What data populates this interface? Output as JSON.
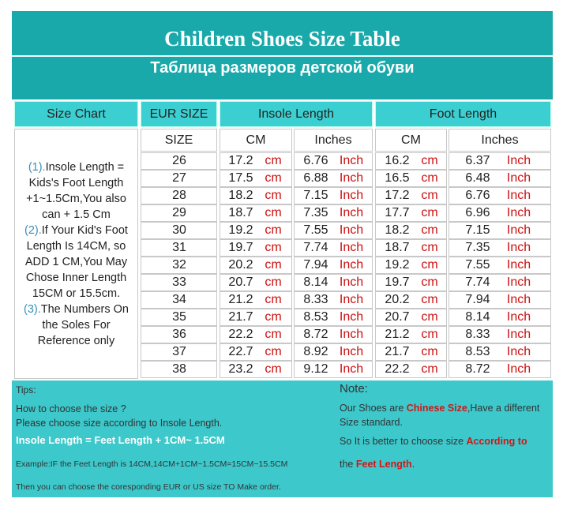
{
  "header": {
    "title": "Children Shoes Size Table",
    "subtitle": "Таблица размеров детской обуви"
  },
  "table": {
    "headers": [
      "Size Chart",
      "EUR SIZE",
      "Insole Length",
      "Foot Length"
    ],
    "subheaders": [
      "SIZE",
      "CM",
      "Inches",
      "CM",
      "Inches"
    ],
    "rows": [
      [
        "26",
        "17.2",
        "cm",
        "6.76",
        "Inch",
        "16.2",
        "cm",
        "6.37",
        "Inch"
      ],
      [
        "27",
        "17.5",
        "cm",
        "6.88",
        "Inch",
        "16.5",
        "cm",
        "6.48",
        "Inch"
      ],
      [
        "28",
        "18.2",
        "cm",
        "7.15",
        "Inch",
        "17.2",
        "cm",
        "6.76",
        "Inch"
      ],
      [
        "29",
        "18.7",
        "cm",
        "7.35",
        "Inch",
        "17.7",
        "cm",
        "6.96",
        "Inch"
      ],
      [
        "30",
        "19.2",
        "cm",
        "7.55",
        "Inch",
        "18.2",
        "cm",
        "7.15",
        "Inch"
      ],
      [
        "31",
        "19.7",
        "cm",
        "7.74",
        "Inch",
        "18.7",
        "cm",
        "7.35",
        "Inch"
      ],
      [
        "32",
        "20.2",
        "cm",
        "7.94",
        "Inch",
        "19.2",
        "cm",
        "7.55",
        "Inch"
      ],
      [
        "33",
        "20.7",
        "cm",
        "8.14",
        "Inch",
        "19.7",
        "cm",
        "7.74",
        "Inch"
      ],
      [
        "34",
        "21.2",
        "cm",
        "8.33",
        "Inch",
        "20.2",
        "cm",
        "7.94",
        "Inch"
      ],
      [
        "35",
        "21.7",
        "cm",
        "8.53",
        "Inch",
        "20.7",
        "cm",
        "8.14",
        "Inch"
      ],
      [
        "36",
        "22.2",
        "cm",
        "8.72",
        "Inch",
        "21.2",
        "cm",
        "8.33",
        "Inch"
      ],
      [
        "37",
        "22.7",
        "cm",
        "8.92",
        "Inch",
        "21.7",
        "cm",
        "8.53",
        "Inch"
      ],
      [
        "38",
        "23.2",
        "cm",
        "9.12",
        "Inch",
        "22.2",
        "cm",
        "8.72",
        "Inch"
      ]
    ],
    "note": [
      {
        "marker": "(1).",
        "lines": [
          "Insole Length =",
          "Kids's Foot Length",
          "+1~1.5Cm,You also",
          "can + 1.5 Cm"
        ]
      },
      {
        "marker": "(2).",
        "lines": [
          "If Your Kid's Foot",
          "Length Is 14CM,  so",
          "ADD 1 CM,You May",
          "Chose Inner Length",
          "15CM or 15.5cm."
        ]
      },
      {
        "marker": "(3).",
        "lines": [
          "The Numbers On",
          "the Soles For",
          "Reference only"
        ]
      }
    ]
  },
  "tips": {
    "title": "Tips:",
    "lines": [
      {
        "text": "How to choose the size ?",
        "style": "normal"
      },
      {
        "text": "Please choose size according to Insole Length.",
        "style": "normal"
      },
      {
        "text": "Insole Length = Feet Length + 1CM~ 1.5CM",
        "style": "bold"
      },
      {
        "text": "Example:IF the Feet Length is 14CM,14CM+1CM~1.5CM=15CM~15.5CM",
        "style": "small"
      },
      {
        "text": "Then you can choose the coresponding EUR or US size TO Make order.",
        "style": "small"
      }
    ]
  },
  "note": {
    "title": "Note:",
    "lines": [
      [
        {
          "text": "Our Shoes are ",
          "highlight": false
        },
        {
          "text": "Chinese Size",
          "highlight": true
        },
        {
          "text": ",Have a different",
          "highlight": false
        }
      ],
      [
        {
          "text": "Size standard.",
          "highlight": false
        }
      ],
      [
        {
          "text": "So It is better to choose size ",
          "highlight": false
        },
        {
          "text": "According to",
          "highlight": true
        }
      ],
      [
        {
          "text": "the ",
          "highlight": false
        },
        {
          "text": "Feet Length",
          "highlight": true
        },
        {
          "text": ".",
          "highlight": false
        }
      ]
    ]
  }
}
